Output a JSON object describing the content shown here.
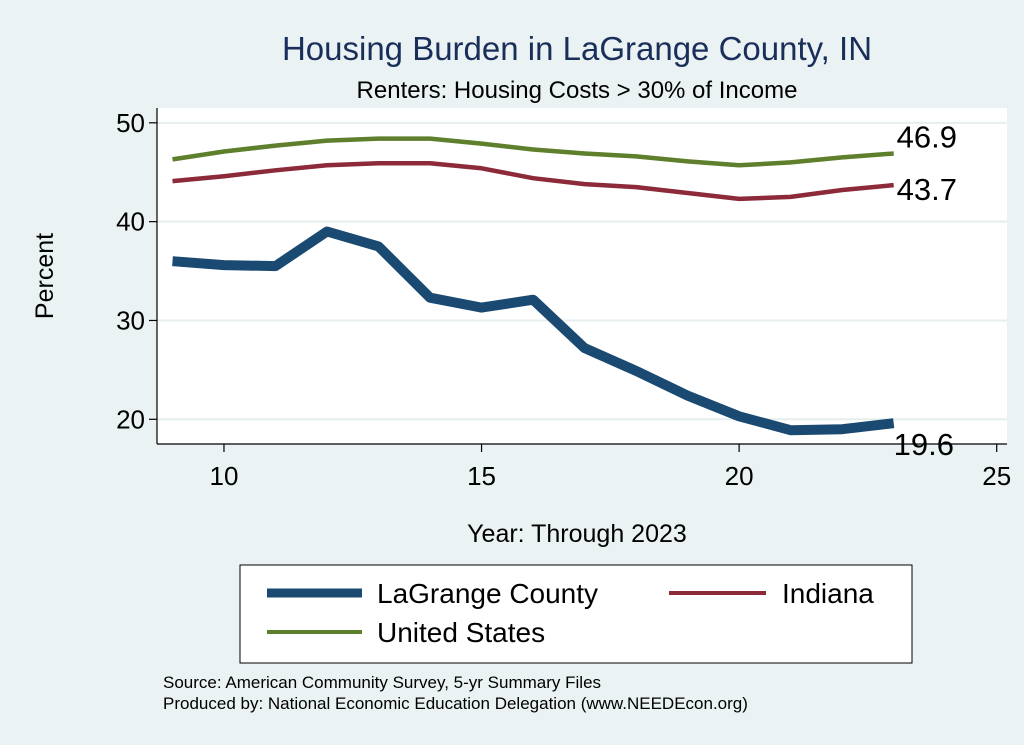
{
  "chart_data": {
    "type": "line",
    "title": "Housing Burden in LaGrange County, IN",
    "subtitle": "Renters: Housing Costs > 30% of Income",
    "xlabel": "Year: Through 2023",
    "ylabel": "Percent",
    "xlim": [
      8.7,
      25.2
    ],
    "ylim": [
      17.5,
      51.5
    ],
    "x_ticks": [
      10,
      15,
      20,
      25
    ],
    "y_ticks": [
      20,
      30,
      40,
      50
    ],
    "grid": true,
    "legend_position": "bottom",
    "x": [
      9,
      10,
      11,
      12,
      13,
      14,
      15,
      16,
      17,
      18,
      19,
      20,
      21,
      22,
      23
    ],
    "series": [
      {
        "name": "LaGrange County",
        "color": "#1a4a72",
        "values": [
          36.0,
          35.6,
          35.5,
          39.0,
          37.5,
          32.3,
          31.3,
          32.1,
          27.2,
          24.9,
          22.4,
          20.3,
          18.9,
          19.0,
          19.6
        ],
        "end_label": "19.6"
      },
      {
        "name": "Indiana",
        "color": "#8c2a3a",
        "values": [
          44.1,
          44.6,
          45.2,
          45.7,
          45.9,
          45.9,
          45.4,
          44.4,
          43.8,
          43.5,
          42.9,
          42.3,
          42.5,
          43.2,
          43.7
        ],
        "end_label": "43.7"
      },
      {
        "name": "United States",
        "color": "#5e7f2c",
        "values": [
          46.3,
          47.1,
          47.7,
          48.2,
          48.4,
          48.4,
          47.9,
          47.3,
          46.9,
          46.6,
          46.1,
          45.7,
          46.0,
          46.5,
          46.9
        ],
        "end_label": "46.9"
      }
    ],
    "source_note": "Source: American Community Survey, 5-yr Summary Files",
    "produced_note": "Produced by: National Economic Education Delegation (www.NEEDEcon.org)"
  }
}
